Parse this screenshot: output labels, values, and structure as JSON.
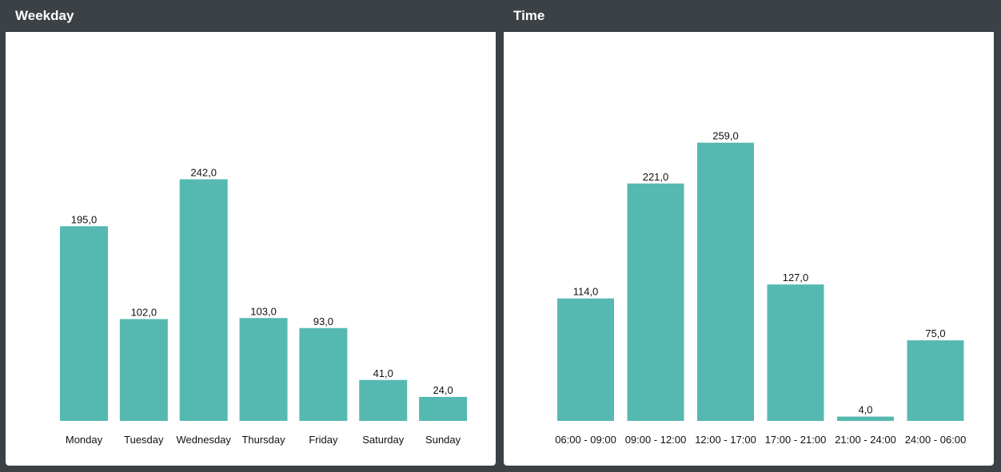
{
  "colors": {
    "bar": "#55b9b1",
    "header_bg": "#3c4146",
    "panel_bg": "#ffffff"
  },
  "panels": [
    {
      "title": "Weekday"
    },
    {
      "title": "Time"
    }
  ],
  "chart_data": [
    {
      "type": "bar",
      "title": "Weekday",
      "categories": [
        "Monday",
        "Tuesday",
        "Wednesday",
        "Thursday",
        "Friday",
        "Saturday",
        "Sunday"
      ],
      "values": [
        195,
        102,
        242,
        103,
        93,
        41,
        24
      ],
      "value_labels": [
        "195,0",
        "102,0",
        "242,0",
        "103,0",
        "93,0",
        "41,0",
        "24,0"
      ],
      "xlabel": "",
      "ylabel": "",
      "ylim": [
        0,
        340
      ],
      "grid": false
    },
    {
      "type": "bar",
      "title": "Time",
      "categories": [
        "06:00 - 09:00",
        "09:00 - 12:00",
        "12:00 - 17:00",
        "17:00 - 21:00",
        "21:00 - 24:00",
        "24:00 - 06:00"
      ],
      "values": [
        114,
        221,
        259,
        127,
        4,
        75
      ],
      "value_labels": [
        "114,0",
        "221,0",
        "259,0",
        "127,0",
        "4,0",
        "75,0"
      ],
      "xlabel": "",
      "ylabel": "",
      "ylim": [
        0,
        316
      ],
      "grid": false
    }
  ]
}
